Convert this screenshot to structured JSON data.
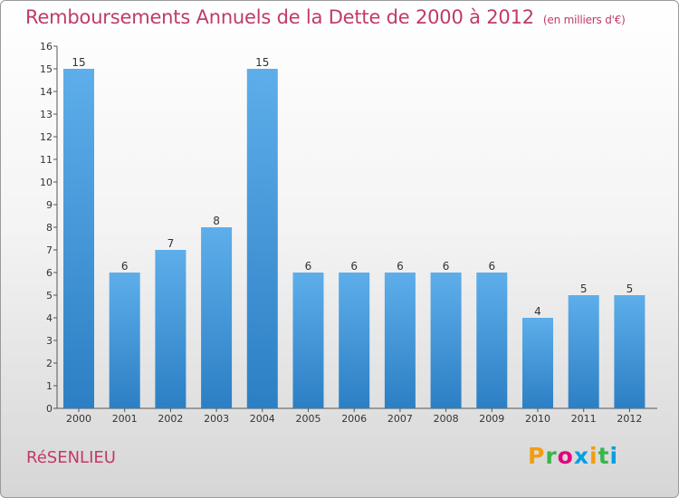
{
  "header": {
    "title": "Remboursements Annuels de la Dette de 2000 à 2012",
    "unit": "(en milliers d'€)"
  },
  "footer": {
    "place": "RéSENLIEU",
    "logo_letters": [
      "P",
      "r",
      "o",
      "x",
      "i",
      "t",
      "i"
    ]
  },
  "colors": {
    "bar": "#4a9fe0",
    "bar_dark": "#2c7fc4",
    "title": "#c03a6a"
  },
  "chart_data": {
    "type": "bar",
    "categories": [
      "2000",
      "2001",
      "2002",
      "2003",
      "2004",
      "2005",
      "2006",
      "2007",
      "2008",
      "2009",
      "2010",
      "2011",
      "2012"
    ],
    "values": [
      15,
      6,
      7,
      8,
      15,
      6,
      6,
      6,
      6,
      6,
      4,
      5,
      5
    ],
    "data_labels": [
      "15",
      "6",
      "7",
      "8",
      "15",
      "6",
      "6",
      "6",
      "6",
      "6",
      "4",
      "5",
      "5"
    ],
    "yticks": [
      "0",
      "1",
      "2",
      "3",
      "4",
      "5",
      "6",
      "7",
      "8",
      "9",
      "10",
      "11",
      "12",
      "13",
      "14",
      "15",
      "16"
    ],
    "ylim": [
      0,
      16
    ],
    "grid": false,
    "legend": "none"
  }
}
